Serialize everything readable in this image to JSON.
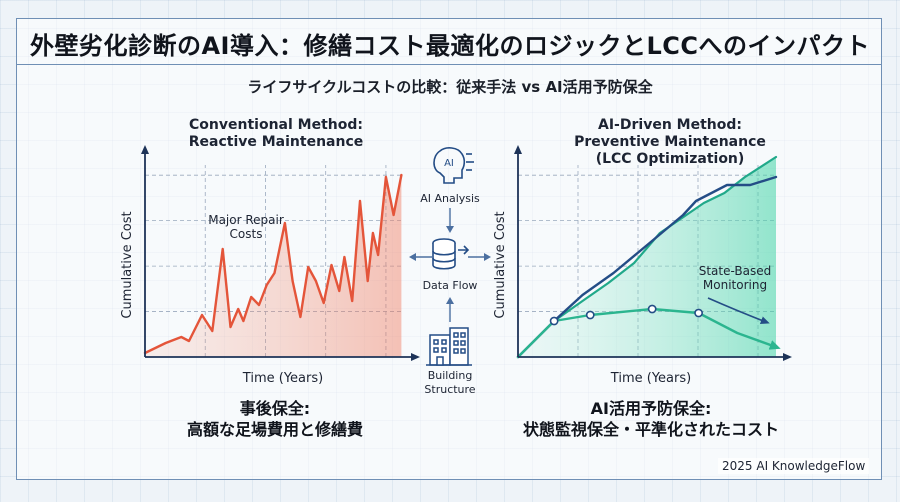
{
  "header": {
    "title": "外壁劣化診断のAI導入：修繕コスト最適化のロジックとLCCへのインパクト",
    "subtitle": "ライフサイクルコストの比較：従来手法 vs AI活用予防保全"
  },
  "center": {
    "ai_analysis": "AI Analysis",
    "data_flow": "Data Flow",
    "building_line1": "Building",
    "building_line2": "Structure"
  },
  "captions": {
    "conventional_line1": "事後保全:",
    "conventional_line2": "高額な足場費用と修繕費",
    "ai_line1": "AI活用予防保全:",
    "ai_line2": "状態監視保全・平準化されたコスト"
  },
  "footer": {
    "text": "2025 AI KnowledgeFlow"
  },
  "chart_data": [
    {
      "type": "line",
      "title_line1": "Conventional Method:",
      "title_line2": "Reactive Maintenance",
      "xlabel": "Time (Years)",
      "ylabel": "Cumulative Cost",
      "annotation_line1": "Major Repair",
      "annotation_line2": "Costs",
      "grid": true,
      "xlim": [
        0,
        100
      ],
      "ylim": [
        0,
        100
      ],
      "series": [
        {
          "color": "#e4553a",
          "x": [
            0,
            8,
            14,
            17,
            22,
            26,
            30,
            33,
            36,
            38,
            41,
            44,
            47,
            50,
            54,
            57,
            60,
            63,
            66,
            69,
            72,
            75,
            77,
            80,
            83,
            86,
            88,
            90,
            93,
            96,
            99
          ],
          "y": [
            2,
            7,
            10,
            8,
            21,
            13,
            54,
            15,
            24,
            18,
            30,
            26,
            36,
            42,
            67,
            38,
            20,
            45,
            38,
            27,
            46,
            33,
            50,
            28,
            78,
            38,
            62,
            51,
            90,
            71,
            91
          ]
        }
      ]
    },
    {
      "type": "line",
      "title_line1": "AI-Driven Method:",
      "title_line2": "Preventive Maintenance",
      "title_line3": "(LCC Optimization)",
      "xlabel": "Time (Years)",
      "ylabel": "Cumulative Cost",
      "annotation_line1": "State-Based",
      "annotation_line2": "Monitoring",
      "grid": true,
      "xlim": [
        0,
        100
      ],
      "ylim": [
        0,
        100
      ],
      "series": [
        {
          "color": "#21a98a",
          "x": [
            0,
            14,
            25,
            35,
            45,
            55,
            63,
            72,
            80,
            88,
            100
          ],
          "y": [
            0,
            18,
            28,
            37,
            47,
            62,
            69,
            77,
            82,
            90,
            100
          ]
        },
        {
          "color": "#244d86",
          "x": [
            0,
            14,
            25,
            37,
            51,
            64,
            69,
            81,
            90,
            100
          ],
          "y": [
            0,
            18,
            31,
            42,
            57,
            71,
            78,
            86,
            86,
            90
          ]
        },
        {
          "color": "#2bb58f",
          "x": [
            0,
            14,
            28,
            52,
            70,
            85,
            100
          ],
          "y": [
            0,
            18,
            21,
            24,
            22,
            12,
            5
          ],
          "markers_at": [
            14,
            28,
            52,
            70
          ]
        }
      ]
    }
  ]
}
